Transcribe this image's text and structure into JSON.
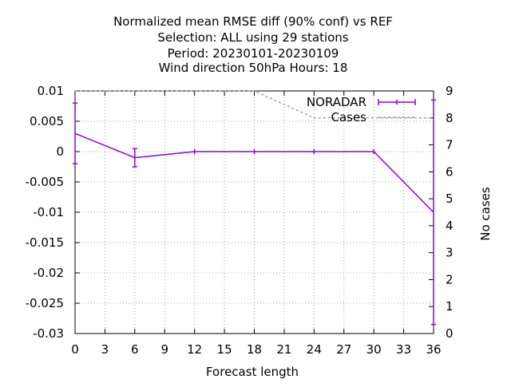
{
  "chart_data": {
    "type": "line",
    "title_lines": [
      "Normalized mean RMSE diff (90% conf) vs REF",
      "Selection: ALL using    29 stations",
      "Period: 20230101-20230109",
      "Wind direction 50hPa   Hours:  18"
    ],
    "xlabel": "Forecast length",
    "ylabel": "",
    "y2label": "No cases",
    "xlim": [
      0,
      36
    ],
    "ylim": [
      -0.03,
      0.01
    ],
    "y2lim": [
      0,
      9
    ],
    "x_ticks": [
      0,
      3,
      6,
      9,
      12,
      15,
      18,
      21,
      24,
      27,
      30,
      33,
      36
    ],
    "y_tick_labels": [
      "0.01",
      "0.005",
      "0",
      "-0.005",
      "-0.01",
      "-0.015",
      "-0.02",
      "-0.025",
      "-0.03"
    ],
    "y_ticks": [
      0.01,
      0.005,
      0,
      -0.005,
      -0.01,
      -0.015,
      -0.02,
      -0.025,
      -0.03
    ],
    "y2_ticks": [
      0,
      1,
      2,
      3,
      4,
      5,
      6,
      7,
      8,
      9
    ],
    "grid": true,
    "legend_position": "top-right",
    "series": [
      {
        "name": "NORADAR",
        "color": "#9400d3",
        "style": "solid-errorbars",
        "x": [
          0,
          6,
          12,
          18,
          24,
          30,
          36
        ],
        "y": [
          0.003,
          -0.001,
          0,
          0,
          0,
          0,
          -0.01
        ],
        "err_low": [
          -0.002,
          -0.0025,
          0,
          0,
          0,
          0,
          -0.0285
        ],
        "err_high": [
          0.008,
          0.0005,
          0,
          0,
          0,
          0,
          0.0085
        ]
      },
      {
        "name": "Cases",
        "color": "#a0a0a0",
        "style": "dotted",
        "axis": "y2",
        "x": [
          0,
          6,
          12,
          18,
          24,
          30,
          36
        ],
        "y": [
          9,
          9,
          9,
          9,
          8,
          8,
          8
        ]
      }
    ]
  }
}
